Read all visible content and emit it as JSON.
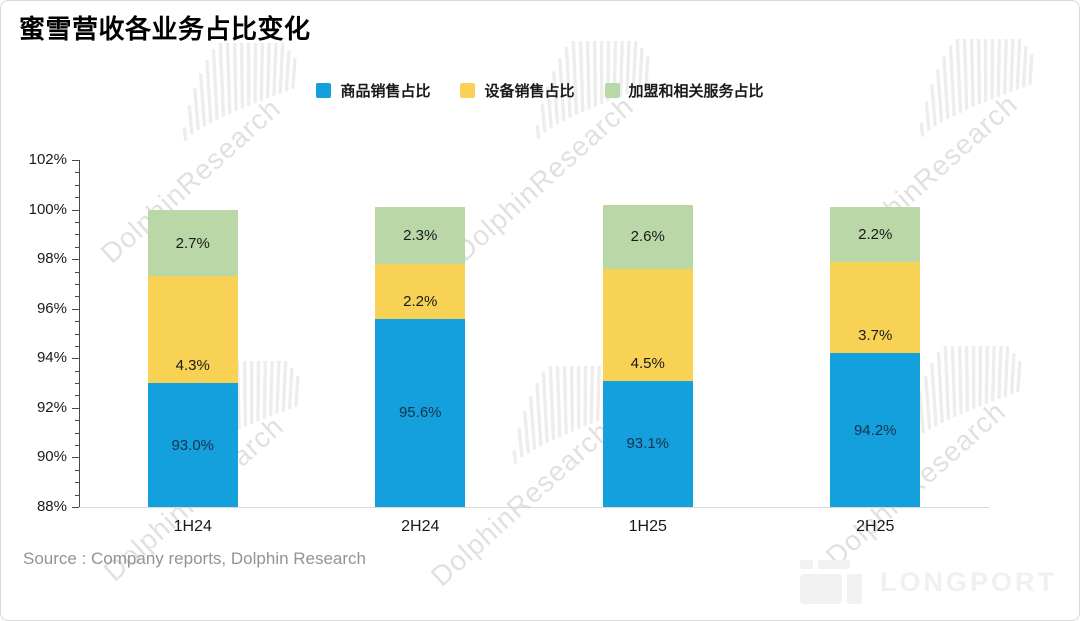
{
  "page": {
    "title": "蜜雪营收各业务占比变化",
    "source": "Source : Company reports, Dolphin Research",
    "watermark_text": "DolphinResearch",
    "brand_logo_text": "LONGPORT"
  },
  "chart_data": {
    "type": "bar",
    "stacked": true,
    "title": "蜜雪营收各业务占比变化",
    "categories": [
      "1H24",
      "2H24",
      "1H25",
      "2H25"
    ],
    "series": [
      {
        "name": "商品销售占比",
        "color": "#149fdd",
        "label_color": "#16324f",
        "values": [
          93.0,
          95.6,
          93.1,
          94.2
        ],
        "labels": [
          "93.0%",
          "95.6%",
          "93.1%",
          "94.2%"
        ]
      },
      {
        "name": "设备销售占比",
        "color": "#f8d254",
        "label_color": "#1a1a1a",
        "values": [
          4.3,
          2.2,
          4.5,
          3.7
        ],
        "labels": [
          "4.3%",
          "2.2%",
          "4.5%",
          "3.7%"
        ]
      },
      {
        "name": "加盟和相关服务占比",
        "color": "#bad8a7",
        "label_color": "#1a1a1a",
        "values": [
          2.7,
          2.3,
          2.6,
          2.2
        ],
        "labels": [
          "2.7%",
          "2.3%",
          "2.6%",
          "2.2%"
        ]
      }
    ],
    "value_format": "percent",
    "xlabel": "",
    "ylabel": "",
    "ylim": [
      88,
      102
    ],
    "ytick_step": 2,
    "ytick_minor_step": 0.5,
    "ytick_labels": [
      "102%",
      "100%",
      "98%",
      "96%",
      "94%",
      "92%",
      "90%",
      "88%"
    ],
    "legend_position": "top",
    "grid": false,
    "y_axis_color": "#4a4a4a",
    "x_axis_line_color": "#d9d9d9"
  }
}
